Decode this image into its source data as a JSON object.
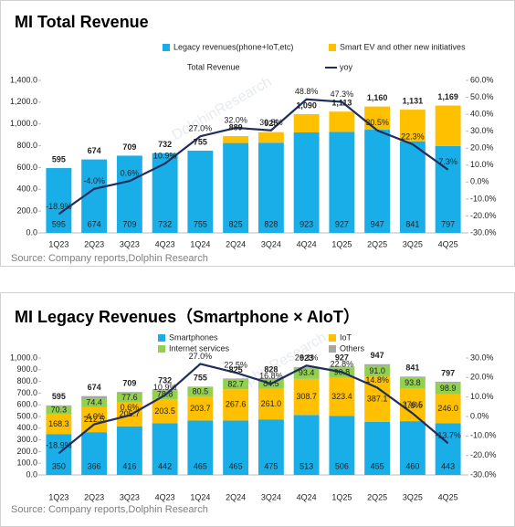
{
  "chart_data": [
    {
      "type": "bar",
      "title": "MI Total Revenue",
      "categories": [
        "1Q23",
        "2Q23",
        "3Q23",
        "4Q23",
        "1Q24",
        "2Q24",
        "3Q24",
        "4Q24",
        "1Q25",
        "2Q25",
        "3Q25",
        "4Q25"
      ],
      "series": [
        {
          "name": "Legacy revenues(phone+IoT,etc)",
          "color": "#19aee8",
          "values": [
            595,
            674,
            709,
            732,
            755,
            825,
            828,
            923,
            927,
            947,
            841,
            797
          ]
        },
        {
          "name": "Smart EV and other new initiatives",
          "color": "#ffc000",
          "values": [
            0,
            0,
            0,
            0,
            0,
            64,
            97,
            167,
            186,
            213,
            290,
            372
          ]
        },
        {
          "name": "yoy",
          "color": "#1f2d5c",
          "axis": "y2",
          "values": [
            -18.9,
            -4.0,
            0.6,
            10.9,
            27.0,
            32.0,
            30.5,
            48.8,
            47.3,
            30.5,
            22.3,
            7.3
          ],
          "value_labels": [
            "-18.9%",
            "-4.0%",
            "0.6%",
            "10.9%",
            "27.0%",
            "32.0%",
            "30.5%",
            "48.8%",
            "47.3%",
            "30.5%",
            "22.3%",
            "7.3%"
          ]
        }
      ],
      "totals": {
        "name": "Total Revenue",
        "values": [
          595,
          674,
          709,
          732,
          755,
          889,
          925,
          1090,
          1113,
          1160,
          1131,
          1169
        ],
        "value_labels": [
          "595",
          "674",
          "709",
          "732",
          "755",
          "889",
          "925",
          "1,090",
          "1,113",
          "1,160",
          "1,131",
          "1,169"
        ]
      },
      "ylim": [
        0,
        1400
      ],
      "yticks": [
        {
          "value": 0,
          "label": "0.0"
        },
        {
          "value": 200,
          "label": "200.0"
        },
        {
          "value": 400,
          "label": "400.0"
        },
        {
          "value": 600,
          "label": "600.0"
        },
        {
          "value": 800,
          "label": "800.0"
        },
        {
          "value": 1000,
          "label": "1,000.0"
        },
        {
          "value": 1200,
          "label": "1,200.0"
        },
        {
          "value": 1400,
          "label": "1,400.0"
        }
      ],
      "y2lim": [
        -30,
        60
      ],
      "y2ticks": [
        {
          "value": -30,
          "label": "-30.0%"
        },
        {
          "value": -20,
          "label": "-20.0%"
        },
        {
          "value": -10,
          "label": "-10.0%"
        },
        {
          "value": 0,
          "label": "0.0%"
        },
        {
          "value": 10,
          "label": "10.0%"
        },
        {
          "value": 20,
          "label": "20.0%"
        },
        {
          "value": 30,
          "label": "30.0%"
        },
        {
          "value": 40,
          "label": "40.0%"
        },
        {
          "value": 50,
          "label": "50.0%"
        },
        {
          "value": 60,
          "label": "60.0%"
        }
      ],
      "source": "Source: Company reports,Dolphin Research",
      "watermark": "DolphinResearch"
    },
    {
      "type": "bar",
      "title": "MI Legacy Revenues（Smartphone × AIoT）",
      "categories": [
        "1Q23",
        "2Q23",
        "3Q23",
        "4Q23",
        "1Q24",
        "2Q24",
        "3Q24",
        "4Q24",
        "1Q25",
        "2Q25",
        "3Q25",
        "4Q25"
      ],
      "series": [
        {
          "name": "Smartphones",
          "color": "#19aee8",
          "values": [
            350,
            366,
            416,
            442,
            465,
            465,
            475,
            513,
            506,
            455,
            460,
            443
          ]
        },
        {
          "name": "IoT",
          "color": "#ffc000",
          "values": [
            168.3,
            212.5,
            205.7,
            203.5,
            203.7,
            267.6,
            261.0,
            308.7,
            323.4,
            387.1,
            276.5,
            246.0
          ],
          "value_labels": [
            "168.3",
            "212.5",
            "205.7",
            "203.5",
            "203.7",
            "267.6",
            "261.0",
            "308.7",
            "323.4",
            "387.1",
            "276.5",
            "246.0"
          ]
        },
        {
          "name": "Internet services",
          "color": "#92d050",
          "values": [
            70.3,
            74.4,
            77.6,
            78.8,
            80.5,
            82.7,
            84.5,
            93.4,
            90.8,
            91.0,
            93.8,
            98.9
          ],
          "value_labels": [
            "70.3",
            "74.4",
            "77.6",
            "78.8",
            "80.5",
            "82.7",
            "84.5",
            "93.4",
            "90.8",
            "91.0",
            "93.8",
            "98.9"
          ]
        },
        {
          "name": "Others",
          "color": "#a6a6a6",
          "values": [
            6.4,
            21.1,
            9.7,
            7.7,
            5.8,
            9.7,
            7.5,
            7.9,
            6.8,
            13.9,
            10.7,
            9.1
          ]
        },
        {
          "color": "#1f2d5c",
          "axis": "y2",
          "values": [
            -18.9,
            -4.0,
            0.6,
            10.9,
            27.0,
            22.5,
            16.8,
            26.1,
            22.8,
            14.8,
            1.6,
            -13.7
          ],
          "value_labels": [
            "-18.9%",
            "-4.0%",
            "0.6%",
            "10.9%",
            "27.0%",
            "22.5%",
            "16.8%",
            "26.1%",
            "22.8%",
            "14.8%",
            "1.6%",
            "-13.7%"
          ]
        }
      ],
      "totals": {
        "values": [
          595,
          674,
          709,
          732,
          755,
          825,
          828,
          923,
          927,
          947,
          841,
          797
        ]
      },
      "ylim": [
        0,
        1000
      ],
      "yticks": [
        {
          "value": 0,
          "label": "0.0"
        },
        {
          "value": 100,
          "label": "100.0"
        },
        {
          "value": 200,
          "label": "200.0"
        },
        {
          "value": 300,
          "label": "300.0"
        },
        {
          "value": 400,
          "label": "400.0"
        },
        {
          "value": 500,
          "label": "500.0"
        },
        {
          "value": 600,
          "label": "600.0"
        },
        {
          "value": 700,
          "label": "700.0"
        },
        {
          "value": 800,
          "label": "800.0"
        },
        {
          "value": 900,
          "label": "900.0"
        },
        {
          "value": 1000,
          "label": "1,000.0"
        }
      ],
      "y2lim": [
        -30,
        30
      ],
      "y2ticks": [
        {
          "value": -30,
          "label": "-30.0%"
        },
        {
          "value": -20,
          "label": "-20.0%"
        },
        {
          "value": -10,
          "label": "-10.0%"
        },
        {
          "value": 0,
          "label": "0.0%"
        },
        {
          "value": 10,
          "label": "10.0%"
        },
        {
          "value": 20,
          "label": "20.0%"
        },
        {
          "value": 30,
          "label": "30.0%"
        }
      ],
      "source": "Source: Company reports,Dolphin Research",
      "watermark": "DolphinResearch"
    }
  ]
}
